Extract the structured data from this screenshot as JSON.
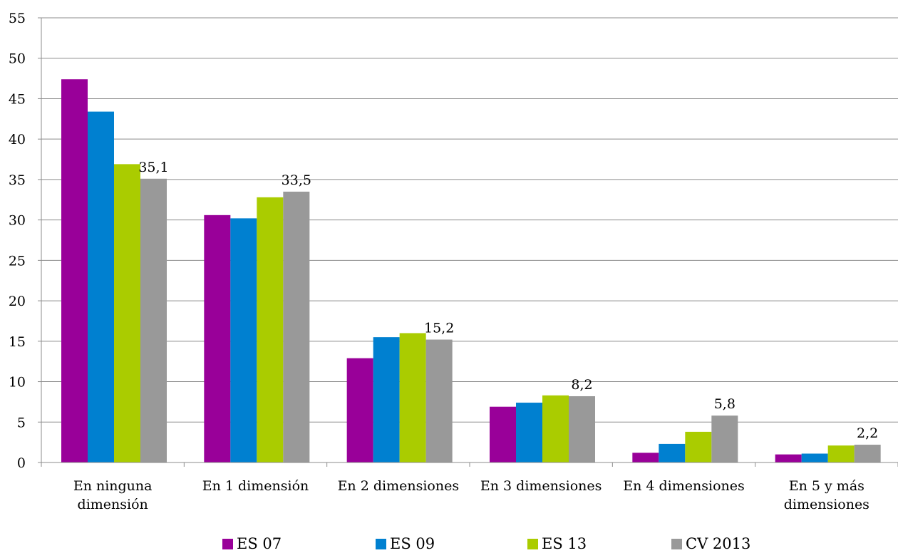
{
  "chart_data": {
    "type": "bar",
    "title": "",
    "xlabel": "",
    "ylabel": "",
    "ylim": [
      0,
      55
    ],
    "yticks": [
      "0",
      "5",
      "10",
      "15",
      "20",
      "25",
      "30",
      "35",
      "40",
      "45",
      "50",
      "55"
    ],
    "categories": [
      [
        "En ninguna",
        "dimensión"
      ],
      [
        "En 1 dimensión"
      ],
      [
        "En 2 dimensiones"
      ],
      [
        "En 3 dimensiones"
      ],
      [
        "En 4 dimensiones"
      ],
      [
        "En 5 y más",
        "dimensiones"
      ]
    ],
    "series": [
      {
        "name": "ES 07",
        "color": "#990099",
        "values": [
          47.4,
          30.6,
          12.9,
          6.9,
          1.2,
          1.0
        ]
      },
      {
        "name": "ES 09",
        "color": "#0080d0",
        "values": [
          43.4,
          30.2,
          15.5,
          7.4,
          2.3,
          1.1
        ]
      },
      {
        "name": "ES 13",
        "color": "#aacc00",
        "values": [
          36.9,
          32.8,
          16.0,
          8.3,
          3.8,
          2.1
        ]
      },
      {
        "name": "CV 2013",
        "color": "#999999",
        "values": [
          35.1,
          33.5,
          15.2,
          8.2,
          5.8,
          2.2
        ]
      }
    ],
    "data_labels": [
      "35,1",
      "33,5",
      "15,2",
      "8,2",
      "5,8",
      "2,2"
    ],
    "grid": true,
    "legend_position": "bottom"
  }
}
